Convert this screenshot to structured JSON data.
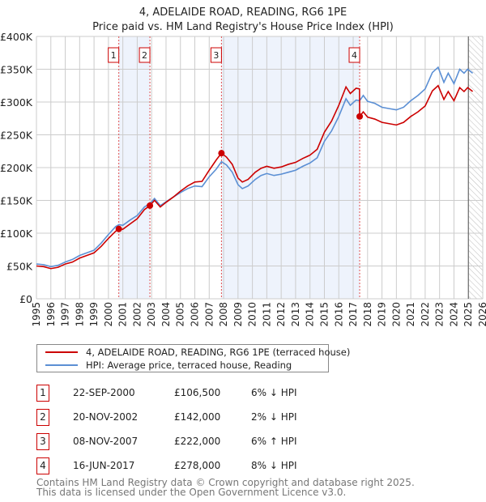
{
  "title": "4, ADELAIDE ROAD, READING, RG6 1PE",
  "subtitle": "Price paid vs. HM Land Registry's House Price Index (HPI)",
  "legend": {
    "property": "4, ADELAIDE ROAD, READING, RG6 1PE (terraced house)",
    "hpi": "HPI: Average price, terraced house, Reading"
  },
  "sales": [
    {
      "num": "1",
      "date": "22-SEP-2000",
      "price": "£106,500",
      "hpi": "6% ↓ HPI"
    },
    {
      "num": "2",
      "date": "20-NOV-2002",
      "price": "£142,000",
      "hpi": "2% ↓ HPI"
    },
    {
      "num": "3",
      "date": "08-NOV-2007",
      "price": "£222,000",
      "hpi": "6% ↑ HPI"
    },
    {
      "num": "4",
      "date": "16-JUN-2017",
      "price": "£278,000",
      "hpi": "8% ↓ HPI"
    }
  ],
  "footer": [
    "Contains HM Land Registry data © Crown copyright and database right 2025.",
    "This data is licensed under the Open Government Licence v3.0."
  ],
  "chart_data": {
    "type": "line",
    "xlim": [
      1995,
      2026
    ],
    "ylim": [
      0,
      400000
    ],
    "xticks": [
      1995,
      1996,
      1997,
      1998,
      1999,
      2000,
      2001,
      2002,
      2003,
      2004,
      2005,
      2006,
      2007,
      2008,
      2009,
      2010,
      2011,
      2012,
      2013,
      2014,
      2015,
      2016,
      2017,
      2018,
      2019,
      2020,
      2021,
      2022,
      2023,
      2024,
      2025,
      2026
    ],
    "yticks": [
      {
        "v": 0,
        "label": "£0"
      },
      {
        "v": 50000,
        "label": "£50K"
      },
      {
        "v": 100000,
        "label": "£100K"
      },
      {
        "v": 150000,
        "label": "£150K"
      },
      {
        "v": 200000,
        "label": "£200K"
      },
      {
        "v": 250000,
        "label": "£250K"
      },
      {
        "v": 300000,
        "label": "£300K"
      },
      {
        "v": 350000,
        "label": "£350K"
      },
      {
        "v": 400000,
        "label": "£400K"
      }
    ],
    "colors": {
      "property": "#cc0000",
      "hpi": "#5b8fd4",
      "shade": "#eef3fc",
      "vline": "#e05050"
    },
    "shaded": [
      [
        2000.72,
        2002.88
      ],
      [
        2007.85,
        2017.45
      ]
    ],
    "forecast_from": 2025.0,
    "sale_points": [
      {
        "label": "1",
        "x": 2000.72,
        "y": 106500
      },
      {
        "label": "2",
        "x": 2002.88,
        "y": 142000
      },
      {
        "label": "3",
        "x": 2007.85,
        "y": 222000
      },
      {
        "label": "4",
        "x": 2017.45,
        "y": 278000
      }
    ],
    "x": [
      1995,
      1995.5,
      1996,
      1996.5,
      1997,
      1997.5,
      1998,
      1998.5,
      1999,
      1999.5,
      2000,
      2000.5,
      2000.72,
      2001,
      2001.5,
      2002,
      2002.5,
      2002.88,
      2003.2,
      2003.6,
      2004,
      2004.5,
      2005,
      2005.5,
      2006,
      2006.5,
      2007,
      2007.5,
      2007.85,
      2008.2,
      2008.6,
      2009,
      2009.3,
      2009.7,
      2010.2,
      2010.6,
      2011,
      2011.5,
      2012,
      2012.5,
      2013,
      2013.5,
      2014,
      2014.5,
      2015,
      2015.5,
      2016,
      2016.5,
      2016.8,
      2017.2,
      2017.44,
      2017.45,
      2017.7,
      2018,
      2018.5,
      2019,
      2019.5,
      2020,
      2020.5,
      2021,
      2021.5,
      2022,
      2022.5,
      2022.9,
      2023.3,
      2023.6,
      2024,
      2024.4,
      2024.7,
      2024.95,
      2025.3
    ],
    "series": [
      {
        "name": "HPI: Average price, terraced house, Reading",
        "values": [
          53,
          52,
          49,
          51,
          56,
          60,
          66,
          70,
          74,
          85,
          98,
          110,
          113,
          112,
          120,
          127,
          140,
          145,
          153,
          142,
          148,
          155,
          162,
          168,
          172,
          171,
          186,
          198,
          209,
          204,
          193,
          174,
          168,
          172,
          182,
          188,
          191,
          188,
          190,
          193,
          196,
          202,
          207,
          215,
          240,
          256,
          278,
          305,
          295,
          303,
          302,
          302,
          310,
          301,
          298,
          292,
          290,
          288,
          292,
          302,
          310,
          320,
          345,
          353,
          330,
          344,
          328,
          350,
          344,
          350,
          344
        ]
      },
      {
        "name": "4, ADELAIDE ROAD, READING, RG6 1PE (terraced house)",
        "values": [
          50,
          49,
          46,
          48,
          53,
          56,
          62,
          66,
          70,
          80,
          92,
          103,
          106.5,
          106,
          114,
          122,
          136,
          142,
          150,
          140,
          147,
          155,
          164,
          172,
          178,
          179,
          196,
          212,
          222,
          216,
          205,
          184,
          178,
          182,
          193,
          199,
          202,
          199,
          201,
          205,
          208,
          214,
          219,
          228,
          254,
          271,
          295,
          323,
          313,
          321,
          320,
          278,
          285,
          277,
          274,
          269,
          267,
          265,
          269,
          278,
          285,
          294,
          317,
          325,
          304,
          316,
          302,
          322,
          316,
          322,
          316
        ]
      }
    ],
    "value_unit": "thousand GBP"
  }
}
